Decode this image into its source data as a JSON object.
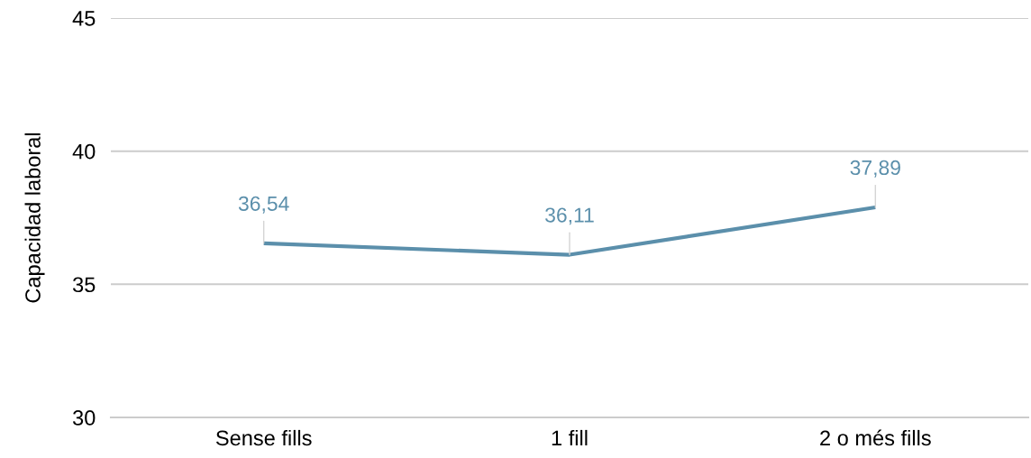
{
  "chart_data": {
    "type": "line",
    "ylabel": "Capacidad laboral",
    "categories": [
      "Sense fills",
      "1 fill",
      "2 o més fills"
    ],
    "series": [
      {
        "color": "#5b8fab",
        "values": [
          36.54,
          36.11,
          37.89
        ],
        "value_labels": [
          "36,54",
          "36,11",
          "37,89"
        ]
      }
    ],
    "ylim": [
      30,
      45
    ],
    "yticks": [
      30,
      35,
      40,
      45
    ],
    "grid": "y",
    "line_style": "solid"
  }
}
